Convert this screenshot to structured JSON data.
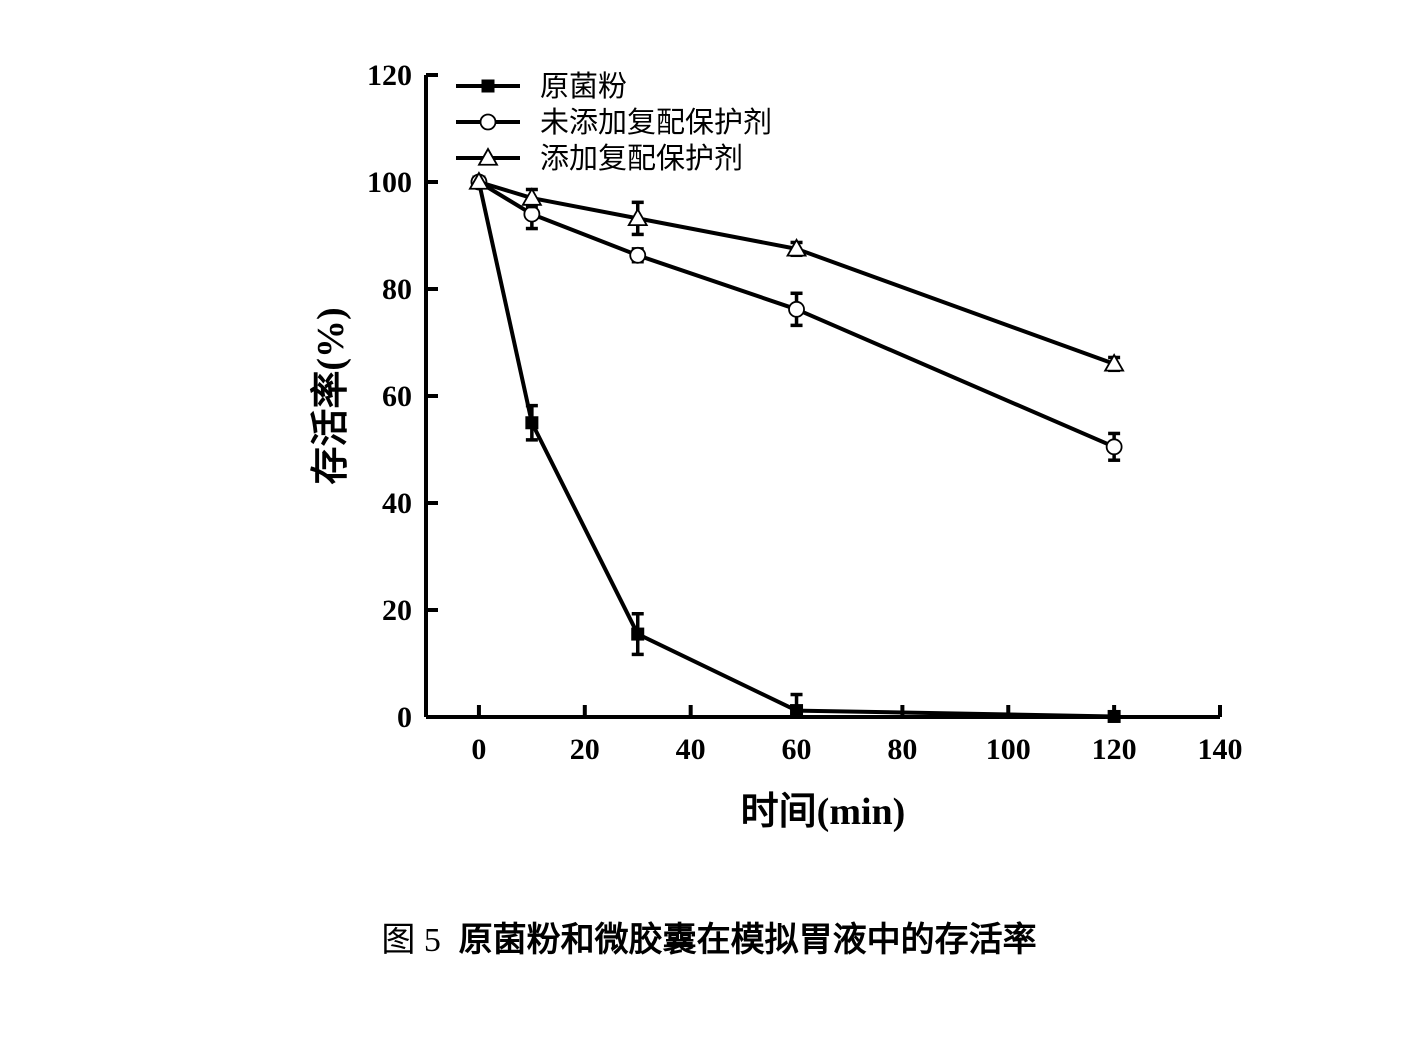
{
  "chart_data": {
    "type": "line",
    "xlabel": "时间(min)",
    "ylabel": "存活率(%)",
    "xlim": [
      -10,
      140
    ],
    "ylim": [
      0,
      120
    ],
    "x_ticks": [
      0,
      20,
      40,
      60,
      80,
      100,
      120,
      140
    ],
    "y_ticks": [
      0,
      20,
      40,
      60,
      80,
      100,
      120
    ],
    "legend_position": "top-left",
    "grid": false,
    "series": [
      {
        "name": "原菌粉",
        "marker": "square-filled",
        "x": [
          0,
          10,
          30,
          60,
          120
        ],
        "y": [
          100,
          55,
          15.5,
          1.2,
          0.1
        ],
        "error": [
          0,
          3.2,
          3.8,
          3,
          0.8
        ]
      },
      {
        "name": "未添加复配保护剂",
        "marker": "circle-open",
        "x": [
          0,
          10,
          30,
          60,
          120
        ],
        "y": [
          100,
          94,
          86.3,
          76.2,
          50.5
        ],
        "error": [
          0,
          2.7,
          1.2,
          3,
          2.5
        ]
      },
      {
        "name": "添加复配保护剂",
        "marker": "triangle-open",
        "x": [
          0,
          10,
          30,
          60,
          120
        ],
        "y": [
          100,
          97,
          93.2,
          87.5,
          66
        ],
        "error": [
          0,
          1.6,
          3,
          1.2,
          1.2
        ]
      }
    ]
  },
  "caption": {
    "figure_number": "图 5",
    "text": "原菌粉和微胶囊在模拟胃液中的存活率"
  }
}
